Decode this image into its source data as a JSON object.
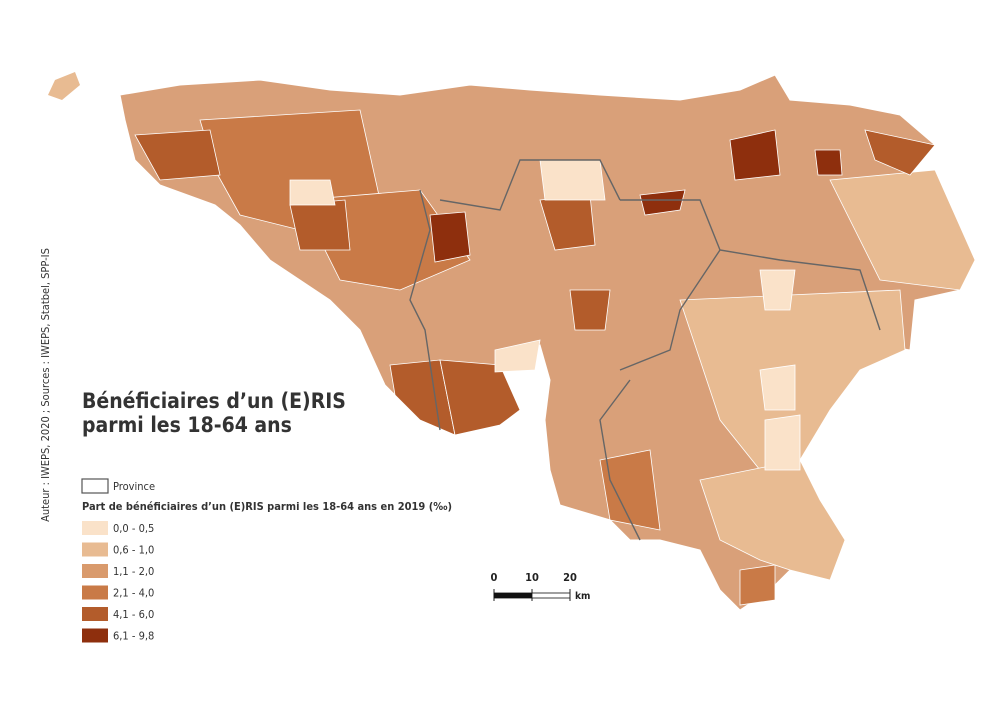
{
  "title_lines": [
    "Bénéficiaires d’un (E)RIS",
    "parmi les 18-64 ans"
  ],
  "credit": "Auteur : IWEPS, 2020 ; Sources : IWEPS, Statbel, SPP-IS",
  "legend": {
    "province": "Province",
    "heading": "Part de bénéficiaires d’un (E)RIS parmi les 18-64 ans en 2019 (‰)",
    "classes": [
      {
        "label": "0,0 - 0,5",
        "color": "#fae2c9"
      },
      {
        "label": "0,6 - 1,0",
        "color": "#e8bb92"
      },
      {
        "label": "1,1 - 2,0",
        "color": "#d99a6c"
      },
      {
        "label": "2,1 - 4,0",
        "color": "#c97a47"
      },
      {
        "label": "4,1 - 6,0",
        "color": "#b35c2b"
      },
      {
        "label": "6,1 - 9,8",
        "color": "#8e2f0d"
      }
    ]
  },
  "scale": {
    "ticks": [
      0,
      10,
      20
    ],
    "unit": "km"
  }
}
